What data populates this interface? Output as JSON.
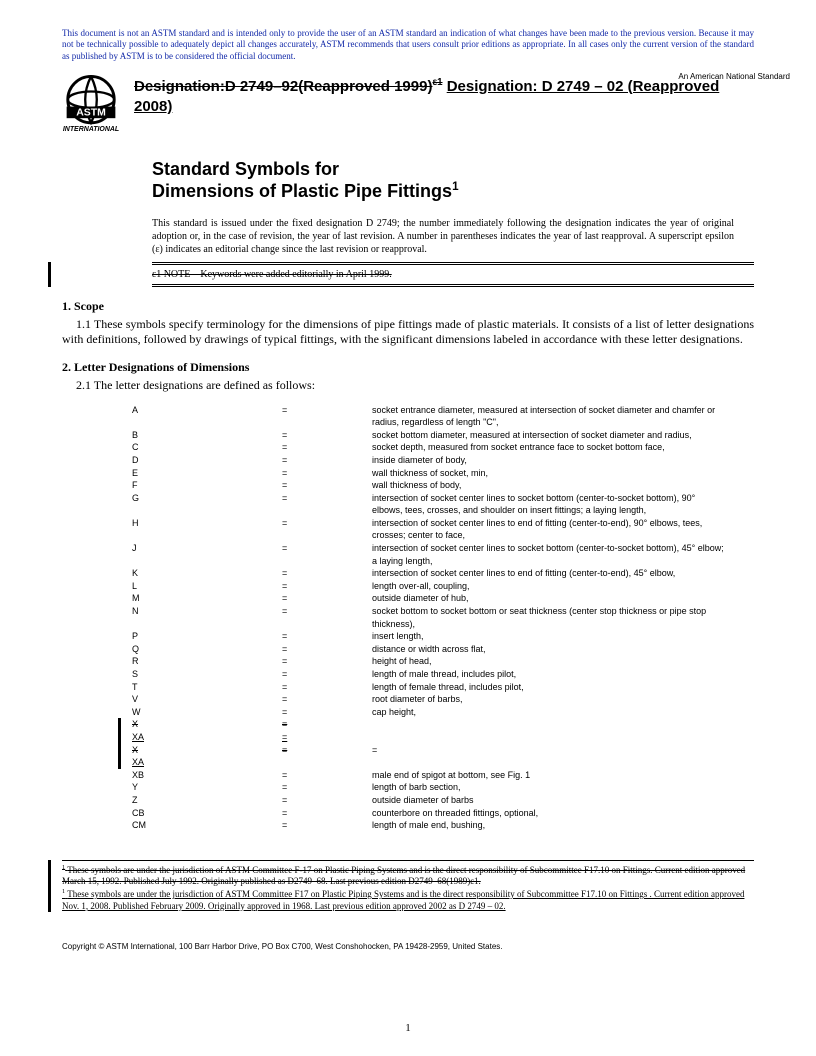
{
  "notice": "This document is not an ASTM standard and is intended only to provide the user of an ASTM standard an indication of what changes have been made to the previous version. Because it may not be technically possible to adequately depict all changes accurately, ASTM recommends that users consult prior editions as appropriate. In all cases only the current version of the standard as published by ASTM is to be considered the official document.",
  "ans_label": "An American National Standard",
  "designation": {
    "old": "Designation:D 2749–92(Reapproved 1999)",
    "old_sup": "ε1",
    "new": "Designation: D 2749 – 02 (Reapproved 2008)"
  },
  "title_line1": "Standard Symbols for",
  "title_line2": "Dimensions of Plastic Pipe Fittings",
  "title_sup": "1",
  "issuance": "This standard is issued under the fixed designation D 2749; the number immediately following the designation indicates the year of original adoption or, in the case of revision, the year of last revision. A number in parentheses indicates the year of last reapproval. A superscript epsilon (ε) indicates an editorial change since the last revision or reapproval.",
  "editorial_note": "ε1 NOTE—Keywords were added editorially in April 1999.",
  "sec1_head": "1. Scope",
  "sec1_body": "1.1 These symbols specify terminology for the dimensions of pipe fittings made of plastic materials. It consists of a list of letter designations with definitions, followed by drawings of typical fittings, with the significant dimensions labeled in accordance with these letter designations.",
  "sec2_head": "2. Letter Designations of Dimensions",
  "sec2_intro": "2.1 The letter designations are defined as follows:",
  "defs": [
    {
      "sym": "A",
      "eq": "=",
      "desc": "socket entrance diameter, measured at intersection of socket diameter and chamfer or radius, regardless of length \"C\","
    },
    {
      "sym": "B",
      "eq": "=",
      "desc": "socket bottom diameter, measured at intersection of socket diameter and radius,"
    },
    {
      "sym": "C",
      "eq": "=",
      "desc": "socket depth, measured from socket entrance face to socket bottom face,"
    },
    {
      "sym": "D",
      "eq": "=",
      "desc": "inside diameter of body,"
    },
    {
      "sym": "E",
      "eq": "=",
      "desc": "wall thickness of socket, min,"
    },
    {
      "sym": "F",
      "eq": "=",
      "desc": "wall thickness of body,"
    },
    {
      "sym": "G",
      "eq": "=",
      "desc": "intersection of socket center lines to socket bottom (center-to-socket bottom), 90° elbows, tees, crosses, and shoulder on insert fittings; a laying length,"
    },
    {
      "sym": "H",
      "eq": "=",
      "desc": "intersection of socket center lines to end of fitting (center-to-end), 90° elbows, tees, crosses; center to face,"
    },
    {
      "sym": "J",
      "eq": "=",
      "desc": "intersection of socket center lines to socket bottom (center-to-socket bottom), 45° elbow; a laying length,"
    },
    {
      "sym": "K",
      "eq": "=",
      "desc": "intersection of socket center lines to end of fitting (center-to-end), 45° elbow,"
    },
    {
      "sym": "L",
      "eq": "=",
      "desc": "length over-all, coupling,"
    },
    {
      "sym": "M",
      "eq": "=",
      "desc": "outside diameter of hub,"
    },
    {
      "sym": "N",
      "eq": "=",
      "desc": "socket bottom to socket bottom or seat thickness (center stop thickness or pipe stop thickness),"
    },
    {
      "sym": "P",
      "eq": "=",
      "desc": "insert length,"
    },
    {
      "sym": "Q",
      "eq": "=",
      "desc": "distance or width across flat,"
    },
    {
      "sym": "R",
      "eq": "=",
      "desc": "height of head,"
    },
    {
      "sym": "S",
      "eq": "=",
      "desc": "length of male thread, includes pilot,"
    },
    {
      "sym": "T",
      "eq": "=",
      "desc": "length of female thread, includes pilot,"
    },
    {
      "sym": "V",
      "eq": "=",
      "desc": "root diameter of barbs,"
    },
    {
      "sym": "W",
      "eq": "=",
      "desc": "cap height,"
    }
  ],
  "xa_strike1": {
    "sym": "X",
    "eq": "=",
    "desc": ""
  },
  "xa_under1": {
    "sym": "XA",
    "eq": "=",
    "desc": ""
  },
  "xa_strike2": {
    "sym": "X",
    "eq": "=",
    "desc": "="
  },
  "xa_under2": {
    "sym": "XA",
    "eq": "",
    "desc": ""
  },
  "defs2": [
    {
      "sym": "XB",
      "eq": "=",
      "desc": "male end of spigot at bottom, see Fig. 1"
    },
    {
      "sym": "Y",
      "eq": "=",
      "desc": "length of barb section,"
    },
    {
      "sym": "Z",
      "eq": "=",
      "desc": "outside diameter of barbs"
    },
    {
      "sym": "CB",
      "eq": "=",
      "desc": "counterbore on threaded fittings, optional,"
    },
    {
      "sym": "CM",
      "eq": "=",
      "desc": "length of male end, bushing,"
    }
  ],
  "footnote_old": "1 These symbols are under the jurisdiction of ASTM Committee F-17 on Plastic Piping Systems and is the direct responsibility of Subcommittee F17.10 on Fittings. Current edition approved March 15, 1992. Published July 1992. Originally published as D2749–68. Last previous edition D2749–68(1989)ε1.",
  "footnote_new": "1 These symbols are under the jurisdiction of ASTM Committee F17 on Plastic Piping Systems and is the direct responsibility of Subcommittee F17.10 on Fittings . Current edition approved Nov. 1, 2008. Published February 2009. Originally approved in 1968. Last previous edition approved 2002 as D 2749 – 02.",
  "copyright": "Copyright © ASTM International, 100 Barr Harbor Drive, PO Box C700, West Conshohocken, PA 19428-2959, United States.",
  "page_number": "1"
}
